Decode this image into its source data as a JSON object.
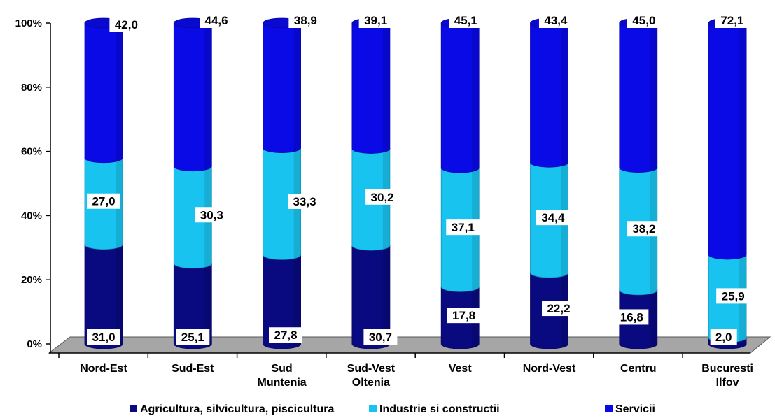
{
  "chart_data": {
    "type": "bar",
    "stacked": true,
    "percent_stacked": true,
    "style": "cylinder-3d",
    "categories": [
      [
        "Nord-Est"
      ],
      [
        "Sud-Est"
      ],
      [
        "Sud",
        "Muntenia"
      ],
      [
        "Sud-Vest",
        "Oltenia"
      ],
      [
        "Vest"
      ],
      [
        "Nord-Vest"
      ],
      [
        "Centru"
      ],
      [
        "Bucuresti",
        "Ilfov"
      ]
    ],
    "series": [
      {
        "name": "Agricultura, silvicultura, piscicultura",
        "color": "#0a0a80",
        "values": [
          31.0,
          25.1,
          27.8,
          30.7,
          17.8,
          22.2,
          16.8,
          2.0
        ],
        "labels": [
          "31,0",
          "25,1",
          "27,8",
          "30,7",
          "17,8",
          "22,2",
          "16,8",
          "2,0"
        ]
      },
      {
        "name": "Industrie si constructii",
        "color": "#19c3f0",
        "values": [
          27.0,
          30.3,
          33.3,
          30.2,
          37.1,
          34.4,
          38.2,
          25.9
        ],
        "labels": [
          "27,0",
          "30,3",
          "33,3",
          "30,2",
          "37,1",
          "34,4",
          "38,2",
          "25,9"
        ]
      },
      {
        "name": "Servicii",
        "color": "#0a0ae6",
        "values": [
          42.0,
          44.6,
          38.9,
          39.1,
          45.1,
          43.4,
          45.0,
          72.1
        ],
        "labels": [
          "42,0",
          "44,6",
          "38,9",
          "39,1",
          "45,1",
          "43,4",
          "45,0",
          "72,1"
        ]
      }
    ],
    "yticks": [
      "0%",
      "20%",
      "40%",
      "60%",
      "80%",
      "100%"
    ],
    "ylim": [
      0,
      100
    ],
    "legend_position": "bottom",
    "grid": false
  }
}
